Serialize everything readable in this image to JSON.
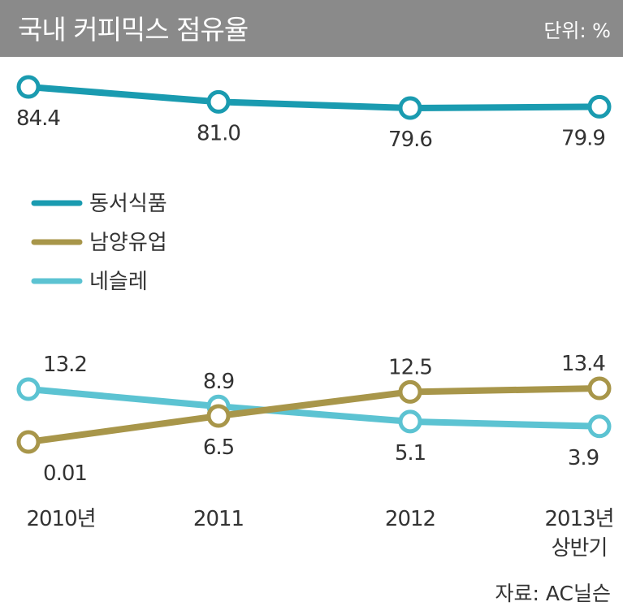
{
  "chart_data": {
    "type": "line",
    "title": "국내 커피믹스 점유율",
    "unit": "단위: %",
    "source": "자료: AC닐슨",
    "categories": [
      {
        "line1": "2010년",
        "line2": ""
      },
      {
        "line1": "2011",
        "line2": ""
      },
      {
        "line1": "2012",
        "line2": ""
      },
      {
        "line1": "2013년",
        "line2": "상반기"
      }
    ],
    "series": [
      {
        "name": "동서식품",
        "color": "#1a9bb0",
        "values": [
          84.4,
          81.0,
          79.6,
          79.9
        ],
        "labels": [
          "84.4",
          "81.0",
          "79.6",
          "79.9"
        ]
      },
      {
        "name": "남양유업",
        "color": "#a8964a",
        "values": [
          0.01,
          6.5,
          12.5,
          13.4
        ],
        "labels": [
          "0.01",
          "6.5",
          "12.5",
          "13.4"
        ]
      },
      {
        "name": "네슬레",
        "color": "#5cc3d2",
        "values": [
          13.2,
          8.9,
          5.1,
          3.9
        ],
        "labels": [
          "13.2",
          "8.9",
          "5.1",
          "3.9"
        ]
      }
    ],
    "legend_position": "middle-left",
    "grid": false,
    "axis_break": true
  }
}
